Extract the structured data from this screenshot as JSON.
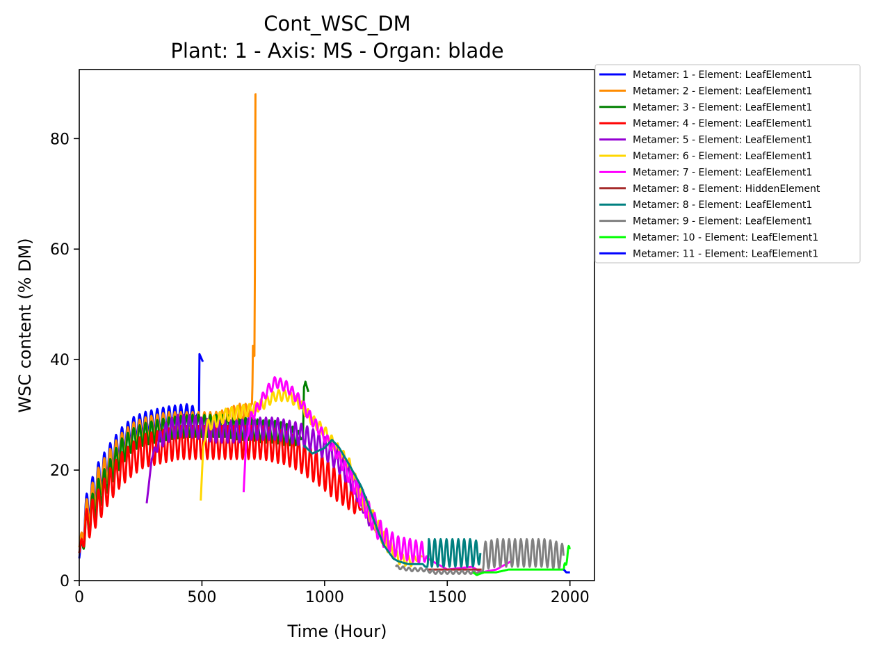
{
  "chart_data": {
    "type": "line",
    "title": "Cont_WSC_DM",
    "subtitle": "Plant: 1 - Axis: MS - Organ: blade",
    "xlabel": "Time (Hour)",
    "ylabel": "WSC content (% DM)",
    "xlim": [
      0,
      2100
    ],
    "ylim": [
      0,
      92.5
    ],
    "xticks": [
      0,
      500,
      1000,
      1500,
      2000
    ],
    "yticks": [
      0,
      20,
      40,
      60,
      80
    ],
    "grid": false,
    "legend_position": "outside-top-right",
    "series": [
      {
        "name": "Metamer: 1 - Element: LeafElement1",
        "color": "#0000ff",
        "period": 24,
        "x": [
          0,
          24,
          72,
          120,
          168,
          216,
          264,
          312,
          360,
          408,
          456,
          488,
          490,
          500,
          505
        ],
        "y": [
          4,
          12,
          18,
          22,
          25,
          27.5,
          28.5,
          29,
          29.5,
          29.8,
          30,
          30,
          41,
          40,
          39.5
        ],
        "amp": [
          0,
          3,
          3,
          2.5,
          2.5,
          2,
          2,
          2,
          2,
          2,
          2,
          0,
          0,
          0,
          0
        ]
      },
      {
        "name": "Metamer: 2 - Element: LeafElement1",
        "color": "#ff8c00",
        "period": 24,
        "x": [
          0,
          24,
          72,
          120,
          168,
          216,
          264,
          312,
          360,
          408,
          456,
          504,
          552,
          600,
          648,
          700,
          705,
          708,
          712,
          715,
          718,
          722
        ],
        "y": [
          6,
          11,
          17,
          21,
          24,
          26.5,
          27.5,
          28,
          28.5,
          28.5,
          28.5,
          28.5,
          28.5,
          29,
          30,
          31,
          32,
          42.5,
          41,
          40.5,
          88,
          88
        ],
        "amp": [
          0,
          3,
          3,
          2.5,
          2.5,
          2,
          2,
          2,
          2,
          2,
          2,
          2,
          2,
          2,
          2,
          1,
          0,
          0,
          0,
          0,
          0,
          0
        ]
      },
      {
        "name": "Metamer: 3 - Element: LeafElement1",
        "color": "#008000",
        "period": 24,
        "x": [
          0,
          24,
          72,
          120,
          168,
          216,
          264,
          312,
          360,
          408,
          456,
          504,
          552,
          600,
          648,
          696,
          744,
          792,
          840,
          888,
          912,
          916,
          922,
          928,
          935
        ],
        "y": [
          5,
          9,
          15,
          19,
          23,
          25.5,
          26.5,
          27,
          27.5,
          27.8,
          28,
          28,
          28,
          28,
          27.5,
          27.5,
          27,
          27,
          26.5,
          26,
          26,
          35,
          36,
          35,
          34
        ],
        "amp": [
          0,
          3,
          3,
          2.5,
          2.5,
          2,
          2,
          2,
          2,
          2,
          2,
          2,
          2,
          2,
          2,
          2,
          2,
          2,
          2,
          1.5,
          0,
          0,
          0,
          0,
          0
        ]
      },
      {
        "name": "Metamer: 4 - Element: LeafElement1",
        "color": "#ff0000",
        "period": 24,
        "x": [
          0,
          24,
          72,
          120,
          168,
          216,
          264,
          312,
          360,
          408,
          456,
          504,
          552,
          600,
          648,
          696,
          744,
          792,
          840,
          888,
          936,
          984,
          1032,
          1080,
          1128,
          1150
        ],
        "y": [
          5,
          9.5,
          13,
          17,
          20,
          22,
          23.5,
          24,
          24.5,
          25,
          25,
          25,
          25,
          25,
          25,
          25,
          25,
          24.5,
          24,
          23,
          21.5,
          20,
          18,
          16,
          14,
          13
        ],
        "amp": [
          0,
          3,
          3,
          3,
          3,
          3,
          3,
          3,
          3,
          3,
          3,
          3,
          3,
          3,
          3,
          3,
          3,
          3,
          3,
          3,
          3,
          3,
          3,
          2.5,
          2,
          0
        ]
      },
      {
        "name": "Metamer: 5 - Element: LeafElement1",
        "color": "#9400d3",
        "period": 24,
        "x": [
          275,
          295,
          320,
          360,
          400,
          450,
          500,
          550,
          600,
          650,
          700,
          750,
          800,
          850,
          900,
          950,
          1000,
          1050,
          1100,
          1150,
          1180,
          1210
        ],
        "y": [
          14,
          22,
          25,
          27,
          28,
          28,
          27.5,
          27,
          27,
          27,
          27.5,
          27.5,
          27.5,
          27,
          26.5,
          25.5,
          24,
          22,
          19,
          15,
          12,
          10
        ],
        "amp": [
          0,
          0,
          1.5,
          2,
          2,
          2,
          2,
          2,
          2,
          2,
          2,
          2,
          2,
          2,
          2,
          2,
          2,
          2,
          2,
          2,
          2,
          1
        ]
      },
      {
        "name": "Metamer: 6 - Element: LeafElement1",
        "color": "#ffd700",
        "period": 24,
        "x": [
          495,
          505,
          520,
          560,
          600,
          650,
          700,
          750,
          800,
          850,
          900,
          950,
          1000,
          1050,
          1100,
          1150,
          1200,
          1250,
          1300,
          1350,
          1400
        ],
        "y": [
          14.5,
          24,
          28,
          29,
          30,
          30.5,
          31,
          32,
          33.5,
          33.5,
          32,
          29,
          27,
          24,
          21,
          15,
          11,
          7,
          4,
          3.5,
          4.5
        ],
        "amp": [
          0,
          0,
          1,
          1.2,
          1.2,
          1.2,
          1,
          1,
          1,
          1,
          1,
          1,
          1,
          1,
          1.2,
          1.5,
          1.5,
          1.5,
          1,
          1,
          0
        ]
      },
      {
        "name": "Metamer: 7 - Element: LeafElement1",
        "color": "#ff00ff",
        "period": 24,
        "x": [
          670,
          680,
          700,
          730,
          760,
          800,
          850,
          900,
          950,
          1000,
          1050,
          1100,
          1150,
          1200,
          1250,
          1300,
          1350,
          1400,
          1420,
          1500,
          1600,
          1640,
          1700,
          1760
        ],
        "y": [
          16,
          25,
          29.5,
          31.5,
          34,
          36,
          35,
          32.5,
          29,
          26,
          23,
          19,
          15,
          10.5,
          7.5,
          6,
          5.5,
          5,
          4,
          2,
          2.5,
          1.5,
          2,
          3.5
        ],
        "amp": [
          0,
          0,
          1,
          1,
          1,
          1,
          1,
          1,
          1,
          1,
          1,
          1.5,
          2,
          2,
          2,
          2,
          2,
          2,
          0,
          0,
          0,
          0,
          0,
          0
        ]
      },
      {
        "name": "Metamer: 8 - Element: HiddenElement",
        "color": "#a52a2a",
        "period": 24,
        "x": [
          1420,
          1480,
          1540,
          1600,
          1640
        ],
        "y": [
          2,
          2,
          2,
          2,
          2
        ],
        "amp": [
          0,
          0,
          0,
          0,
          0
        ]
      },
      {
        "name": "Metamer: 8 - Element: LeafElement1",
        "color": "#008080",
        "period": 24,
        "x": [
          915,
          950,
          1000,
          1030,
          1060,
          1100,
          1150,
          1200,
          1240,
          1280,
          1300,
          1340,
          1400,
          1410,
          1420,
          1425,
          1500,
          1550,
          1600,
          1635
        ],
        "y": [
          24.5,
          23,
          24,
          25.5,
          24,
          21,
          17,
          11,
          6.5,
          4,
          3.5,
          3,
          3,
          2.5,
          2.5,
          5,
          5,
          5,
          5,
          5
        ],
        "amp": [
          0,
          0,
          0,
          0,
          0,
          0,
          0,
          0,
          0,
          0,
          0,
          0,
          0,
          0,
          0,
          2.5,
          2.5,
          2.5,
          2.5,
          2
        ]
      },
      {
        "name": "Metamer: 9 - Element: LeafElement1",
        "color": "#808080",
        "period": 24,
        "x": [
          1290,
          1350,
          1400,
          1450,
          1500,
          1550,
          1600,
          1640,
          1650,
          1700,
          1750,
          1800,
          1850,
          1900,
          1950,
          1975
        ],
        "y": [
          2.5,
          2,
          2,
          1.5,
          1.5,
          1.5,
          1.5,
          1.5,
          4.5,
          5,
          5,
          5,
          5,
          5,
          4.5,
          4.5
        ],
        "amp": [
          0.3,
          0.3,
          0.3,
          0.3,
          0.3,
          0.3,
          0.3,
          0,
          2.5,
          2.5,
          2.5,
          2.5,
          2.5,
          2.5,
          2.5,
          2
        ]
      },
      {
        "name": "Metamer: 10 - Element: LeafElement1",
        "color": "#00ff00",
        "period": 24,
        "x": [
          1605,
          1620,
          1650,
          1700,
          1750,
          1800,
          1850,
          1900,
          1950,
          1975,
          1982,
          1990,
          2000
        ],
        "y": [
          1.5,
          1,
          1.5,
          1.5,
          2,
          2,
          2,
          2,
          2,
          2,
          5,
          4,
          5
        ],
        "amp": [
          0,
          0,
          0,
          0,
          0,
          0,
          0,
          0,
          0,
          0,
          2,
          2,
          1.5
        ]
      },
      {
        "name": "Metamer: 11 - Element: LeafElement1",
        "color": "#0000ff",
        "period": 24,
        "x": [
          1975,
          1985,
          1995,
          2000
        ],
        "y": [
          2,
          1.5,
          1.5,
          1.5
        ],
        "amp": [
          0,
          0,
          0,
          0
        ]
      }
    ]
  }
}
